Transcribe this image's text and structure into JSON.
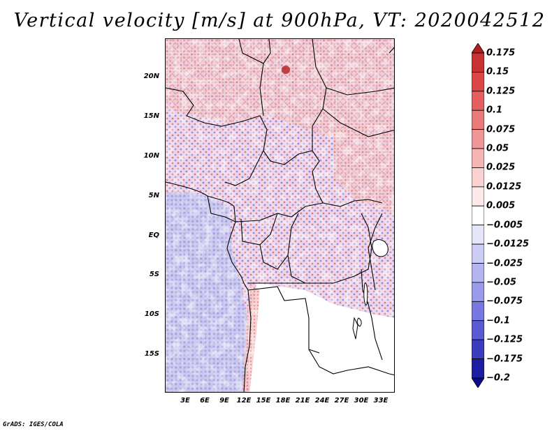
{
  "title": "Vertical velocity [m/s] at 900hPa, VT: 2020042512",
  "credit": "GrADS: IGES/COLA",
  "y_axis_labels": [
    "20N",
    "15N",
    "10N",
    "5N",
    "EQ",
    "5S",
    "10S",
    "15S"
  ],
  "x_axis_labels": [
    "3E",
    "6E",
    "9E",
    "12E",
    "15E",
    "18E",
    "21E",
    "24E",
    "27E",
    "30E",
    "33E"
  ],
  "colorbar": {
    "labels": [
      "0.175",
      "0.15",
      "0.125",
      "0.1",
      "0.075",
      "0.05",
      "0.025",
      "0.0125",
      "0.005",
      "−0.005",
      "−0.0125",
      "−0.025",
      "−0.05",
      "−0.075",
      "−0.1",
      "−0.125",
      "−0.175",
      "−0.2"
    ],
    "colors": [
      "#b41e1e",
      "#c83232",
      "#dc4646",
      "#e45f5f",
      "#ea7a7a",
      "#f09696",
      "#f5b4b4",
      "#fad2d2",
      "#fceaea",
      "#ffffff",
      "#e6e6fa",
      "#cdcdf5",
      "#b4b4f0",
      "#9b9beb",
      "#7878e1",
      "#5a5ad2",
      "#3c3cbe",
      "#1e1ea0",
      "#0a0a8c"
    ]
  }
}
